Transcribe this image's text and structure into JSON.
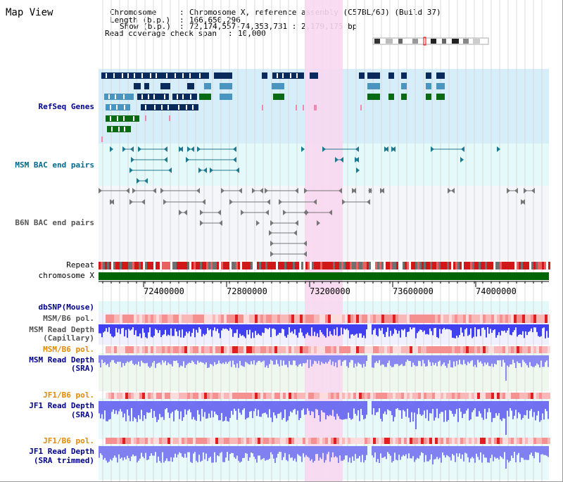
{
  "map_title": "Map View",
  "header": {
    "chromosome_label": "Chromosome",
    "chromosome_value": "Chromosome X, reference assembly (C57BL/6J) (Build 37)",
    "length_label": "Length (b.p.)",
    "length_value": "166,650,296",
    "show_label": "Show (b.p.)",
    "show_value": "72,174,557-74,353,731 : 2,179,175 bp",
    "span_label": "Read coverage check span",
    "span_value": "10,000"
  },
  "tracks": {
    "refseq": "RefSeq Genes",
    "msm_bac": "MSM BAC end pairs",
    "b6n_bac": "B6N BAC end pairs",
    "repeat": "Repeat",
    "chromosome": "chromosome X",
    "dbsnp": "dbSNP(Mouse)",
    "msm_b6_pol_1": "MSM/B6 pol.",
    "msm_depth_cap_1": "MSM Read Depth",
    "msm_depth_cap_2": "(Capillary)",
    "msm_b6_pol_2": "MSM/B6 pol.",
    "msm_depth_sra_1": "MSM Read Depth",
    "msm_depth_sra_2": "(SRA)",
    "jf1_b6_pol_1": "JF1/B6 pol.",
    "jf1_depth_sra_1": "JF1 Read Depth",
    "jf1_depth_sra_2": "(SRA)",
    "jf1_b6_pol_2": "JF1/B6 pol.",
    "jf1_depth_trim_1": "JF1 Read Depth",
    "jf1_depth_trim_2": "(SRA trimmed)"
  },
  "axis_ticks": [
    "72400000",
    "72800000",
    "73200000",
    "73600000",
    "74000000"
  ],
  "colors": {
    "refseq_bg": "#d6eefa",
    "msm_bac_bg": "#e4fafa",
    "b6n_bac_bg": "#f4f6fa",
    "highlight": "#f8d8f0",
    "gene_dark": "#0b2a5c",
    "gene_mid": "#4a94c0",
    "gene_green": "#0a6a14",
    "chromosome_bar": "#006400",
    "depth_blue": "#3030e8",
    "pol_red": "#f08080",
    "label_navy": "#00008b",
    "label_teal": "#006a8a",
    "label_orange": "#e08a00"
  }
}
